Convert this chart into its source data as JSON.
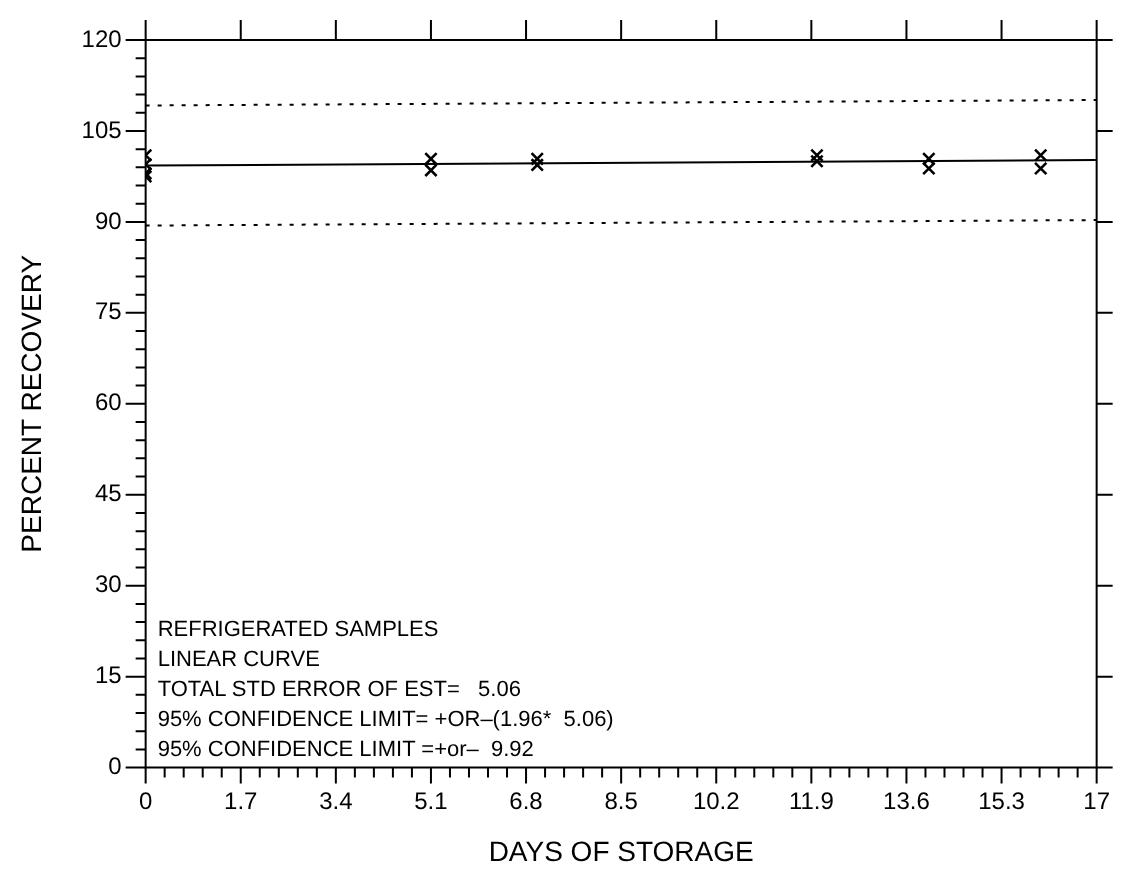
{
  "chart_data": {
    "type": "scatter",
    "xlabel": "DAYS OF STORAGE",
    "ylabel": "PERCENT RECOVERY",
    "xlim": [
      0,
      17
    ],
    "xticks": [
      0,
      1.7,
      3.4,
      5.1,
      6.8,
      8.5,
      10.2,
      11.9,
      13.6,
      15.3,
      17
    ],
    "ylim": [
      0,
      120
    ],
    "yticks": [
      0,
      15,
      30,
      45,
      60,
      75,
      90,
      105,
      120
    ],
    "grid": false,
    "legend": false,
    "series": [
      {
        "type": "scatter",
        "color": "#000000",
        "marker": "cross",
        "x": [
          0,
          0,
          0,
          0,
          5.1,
          5.1,
          7,
          7,
          12,
          12,
          14,
          14,
          16,
          16
        ],
        "values": [
          101,
          99.5,
          98,
          97.5,
          100.4,
          98.5,
          100.4,
          99.4,
          101,
          100,
          100.4,
          98.8,
          101,
          98.8
        ]
      },
      {
        "type": "line",
        "color": "#000000",
        "line_style": "solid",
        "x": [
          0,
          17
        ],
        "values": [
          99.3,
          100.2
        ]
      },
      {
        "type": "line",
        "color": "#000000",
        "line_style": "dotted",
        "x": [
          0,
          17
        ],
        "values": [
          109.2,
          110.1
        ]
      },
      {
        "type": "line",
        "color": "#000000",
        "line_style": "dotted",
        "x": [
          0,
          17
        ],
        "values": [
          89.4,
          90.3
        ]
      }
    ],
    "annotations": [
      "REFRIGERATED SAMPLES",
      "LINEAR CURVE",
      "TOTAL STD ERROR OF EST=   5.06",
      "95% CONFIDENCE LIMIT= +OR–(1.96*  5.06)",
      "95% CONFIDENCE LIMIT =+or–  9.92"
    ]
  }
}
